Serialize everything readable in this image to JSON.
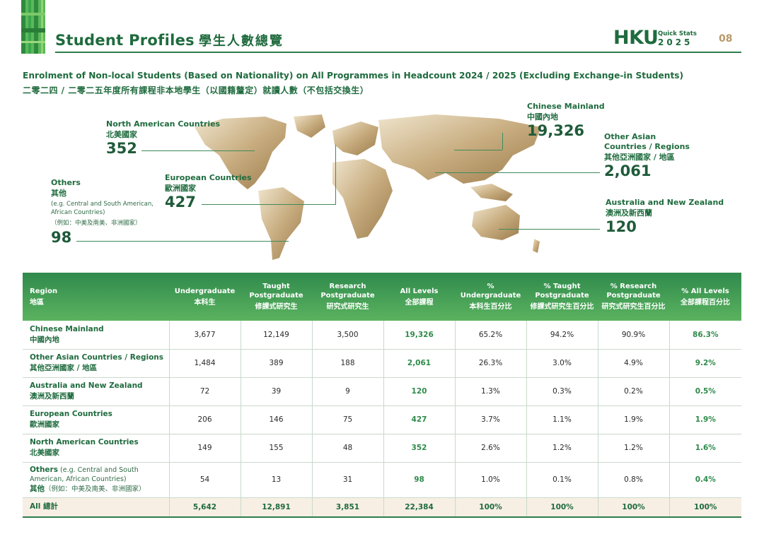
{
  "header": {
    "title_en": "Student Profiles",
    "title_zh": "學生人數總覽",
    "brand": "HKU",
    "quick_stats": "Quick Stats",
    "year": "2025",
    "page_number": "08"
  },
  "subtitle": {
    "en": "Enrolment of Non-local Students (Based on Nationality) on All Programmes in Headcount 2024 / 2025 (Excluding Exchange-in Students)",
    "zh": "二零二四 / 二零二五年度所有課程非本地學生（以國籍釐定）就讀人數（不包括交換生）"
  },
  "map": {
    "labels": {
      "north_america": {
        "en": "North American Countries",
        "zh": "北美國家",
        "value": "352"
      },
      "european": {
        "en": "European Countries",
        "zh": "歐洲國家",
        "value": "427"
      },
      "others": {
        "en": "Others",
        "zh": "其他",
        "note1": "(e.g. Central and South American,",
        "note2": "African Countries)",
        "note_zh": "（例如：中美及南美、非洲國家）",
        "value": "98"
      },
      "chinese_mainland": {
        "en": "Chinese Mainland",
        "zh": "中國內地",
        "value": "19,326"
      },
      "other_asian": {
        "en1": "Other Asian",
        "en2": "Countries / Regions",
        "zh": "其他亞洲國家 / 地區",
        "value": "2,061"
      },
      "australia": {
        "en": "Australia and New Zealand",
        "zh": "澳洲及新西蘭",
        "value": "120"
      }
    },
    "colors": {
      "land_light": "#e9dcc0",
      "land_dark": "#a88a5a",
      "accent": "#1f6b3e"
    }
  },
  "table": {
    "headers": [
      {
        "en": "Region",
        "zh": "地區"
      },
      {
        "en": "Undergraduate",
        "zh": "本科生"
      },
      {
        "en": "Taught Postgraduate",
        "zh": "修課式研究生"
      },
      {
        "en": "Research Postgraduate",
        "zh": "研究式研究生"
      },
      {
        "en": "All Levels",
        "zh": "全部課程"
      },
      {
        "en": "% Undergraduate",
        "zh": "本科生百分比"
      },
      {
        "en": "% Taught Postgraduate",
        "zh": "修課式研究生百分比"
      },
      {
        "en": "% Research Postgraduate",
        "zh": "研究式研究生百分比"
      },
      {
        "en": "% All Levels",
        "zh": "全部課程百分比"
      }
    ],
    "rows": [
      {
        "en": "Chinese Mainland",
        "zh": "中國內地",
        "note": "",
        "note_zh": "",
        "cells": [
          "3,677",
          "12,149",
          "3,500",
          "19,326",
          "65.2%",
          "94.2%",
          "90.9%",
          "86.3%"
        ]
      },
      {
        "en": "Other Asian Countries / Regions",
        "zh": "其他亞洲國家 / 地區",
        "note": "",
        "note_zh": "",
        "cells": [
          "1,484",
          "389",
          "188",
          "2,061",
          "26.3%",
          "3.0%",
          "4.9%",
          "9.2%"
        ]
      },
      {
        "en": "Australia and New Zealand",
        "zh": "澳洲及新西蘭",
        "note": "",
        "note_zh": "",
        "cells": [
          "72",
          "39",
          "9",
          "120",
          "1.3%",
          "0.3%",
          "0.2%",
          "0.5%"
        ]
      },
      {
        "en": "European Countries",
        "zh": "歐洲國家",
        "note": "",
        "note_zh": "",
        "cells": [
          "206",
          "146",
          "75",
          "427",
          "3.7%",
          "1.1%",
          "1.9%",
          "1.9%"
        ]
      },
      {
        "en": "North American Countries",
        "zh": "北美國家",
        "note": "",
        "note_zh": "",
        "cells": [
          "149",
          "155",
          "48",
          "352",
          "2.6%",
          "1.2%",
          "1.2%",
          "1.6%"
        ]
      },
      {
        "en": "Others",
        "zh": "其他",
        "note": "(e.g. Central and South American, African Countries)",
        "note_zh": "（例如：中美及南美、非洲國家）",
        "cells": [
          "54",
          "13",
          "31",
          "98",
          "1.0%",
          "0.1%",
          "0.8%",
          "0.4%"
        ]
      }
    ],
    "total": {
      "label": "All 總計",
      "cells": [
        "5,642",
        "12,891",
        "3,851",
        "22,384",
        "100%",
        "100%",
        "100%",
        "100%"
      ]
    }
  }
}
